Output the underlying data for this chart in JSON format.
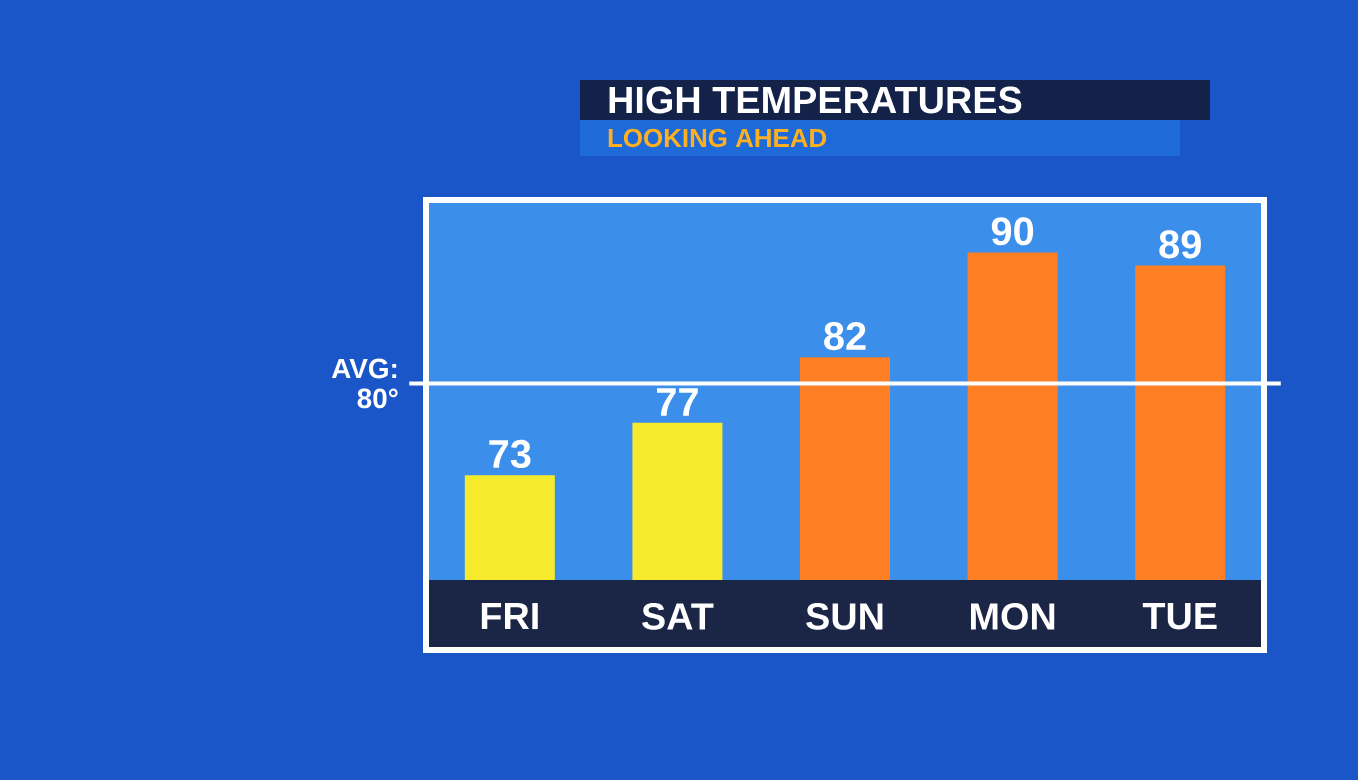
{
  "chart_data": {
    "type": "bar",
    "title": "HIGH TEMPERATURES",
    "subtitle": "LOOKING AHEAD",
    "categories": [
      "FRI",
      "SAT",
      "SUN",
      "MON",
      "TUE"
    ],
    "values": [
      73,
      77,
      82,
      90,
      89
    ],
    "colors": [
      "#f5ea2c",
      "#f5ea2c",
      "#ff7f24",
      "#ff7f24",
      "#ff7f24"
    ],
    "ylim": [
      65,
      94
    ],
    "ref_lines": [
      {
        "axis": "y",
        "value": 80,
        "label": "AVG: 80°",
        "color": "#ffffff"
      }
    ],
    "data_labels": true
  }
}
